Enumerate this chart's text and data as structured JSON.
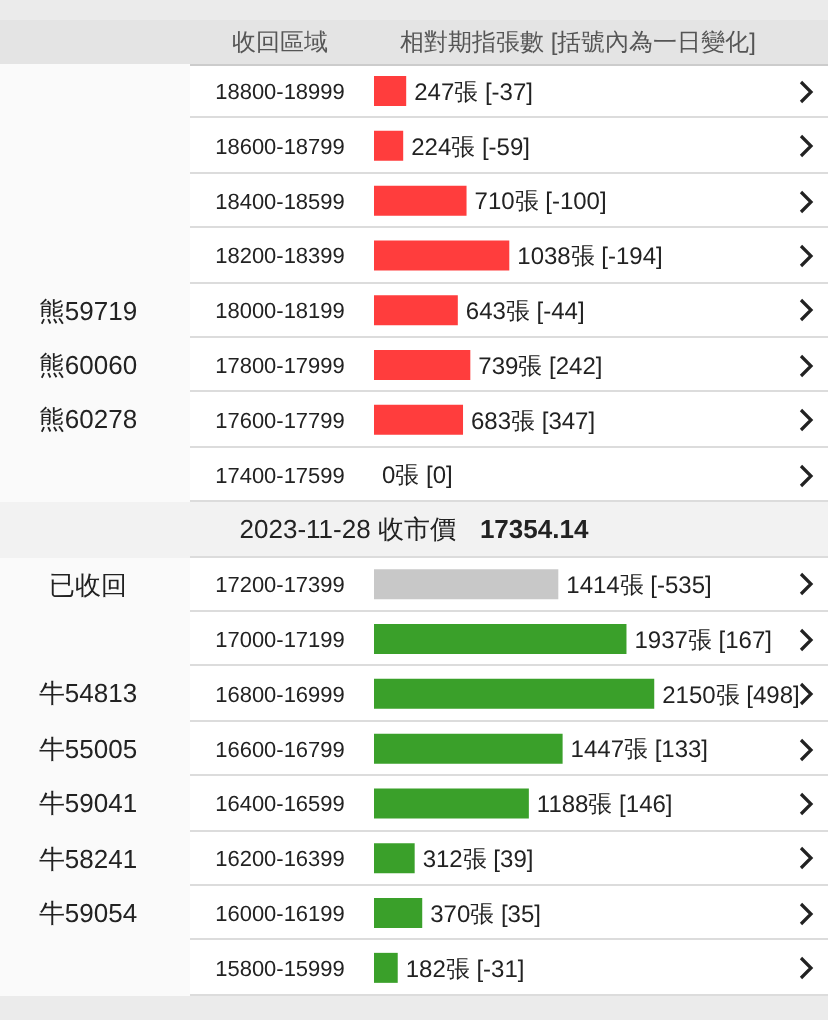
{
  "chart_data": {
    "type": "bar",
    "orientation": "horizontal",
    "ylabel": "收回區域",
    "xlabel": "相對期指張數 [括號內為一日變化]",
    "categories": [
      "18800-18999",
      "18600-18799",
      "18400-18599",
      "18200-18399",
      "18000-18199",
      "17800-17999",
      "17600-17799",
      "17400-17599",
      null,
      "17200-17399",
      "17000-17199",
      "16800-16999",
      "16600-16799",
      "16400-16599",
      "16200-16399",
      "16000-16199",
      "15800-15999"
    ],
    "values": [
      247,
      224,
      710,
      1038,
      643,
      739,
      683,
      0,
      null,
      1414,
      1937,
      2150,
      1447,
      1188,
      312,
      370,
      182
    ],
    "colors": [
      "#ff3d3d",
      "#ff3d3d",
      "#ff3d3d",
      "#ff3d3d",
      "#ff3d3d",
      "#ff3d3d",
      "#ff3d3d",
      "#ff3d3d",
      null,
      "#c8c8c8",
      "#3aa02a",
      "#3aa02a",
      "#3aa02a",
      "#3aa02a",
      "#3aa02a",
      "#3aa02a",
      "#3aa02a"
    ],
    "value_labels": [
      "247張 [-37]",
      "224張 [-59]",
      "710張 [-100]",
      "1038張 [-194]",
      "643張 [-44]",
      "739張 [242]",
      "683張 [347]",
      "0張 [0]",
      null,
      "1414張 [-535]",
      "1937張 [167]",
      "2150張 [498]",
      "1447張 [133]",
      "1188張 [146]",
      "312張 [39]",
      "370張 [35]",
      "182張 [-31]"
    ],
    "y2_categories": [
      null,
      null,
      null,
      null,
      "熊59719",
      "熊60060",
      "熊60278",
      null,
      null,
      "已收回",
      null,
      "牛54813",
      "牛55005",
      "牛59041",
      "牛58241",
      "牛59054",
      null
    ],
    "annotations": [
      "2023-11-28 收市價",
      "17354.14"
    ]
  }
}
